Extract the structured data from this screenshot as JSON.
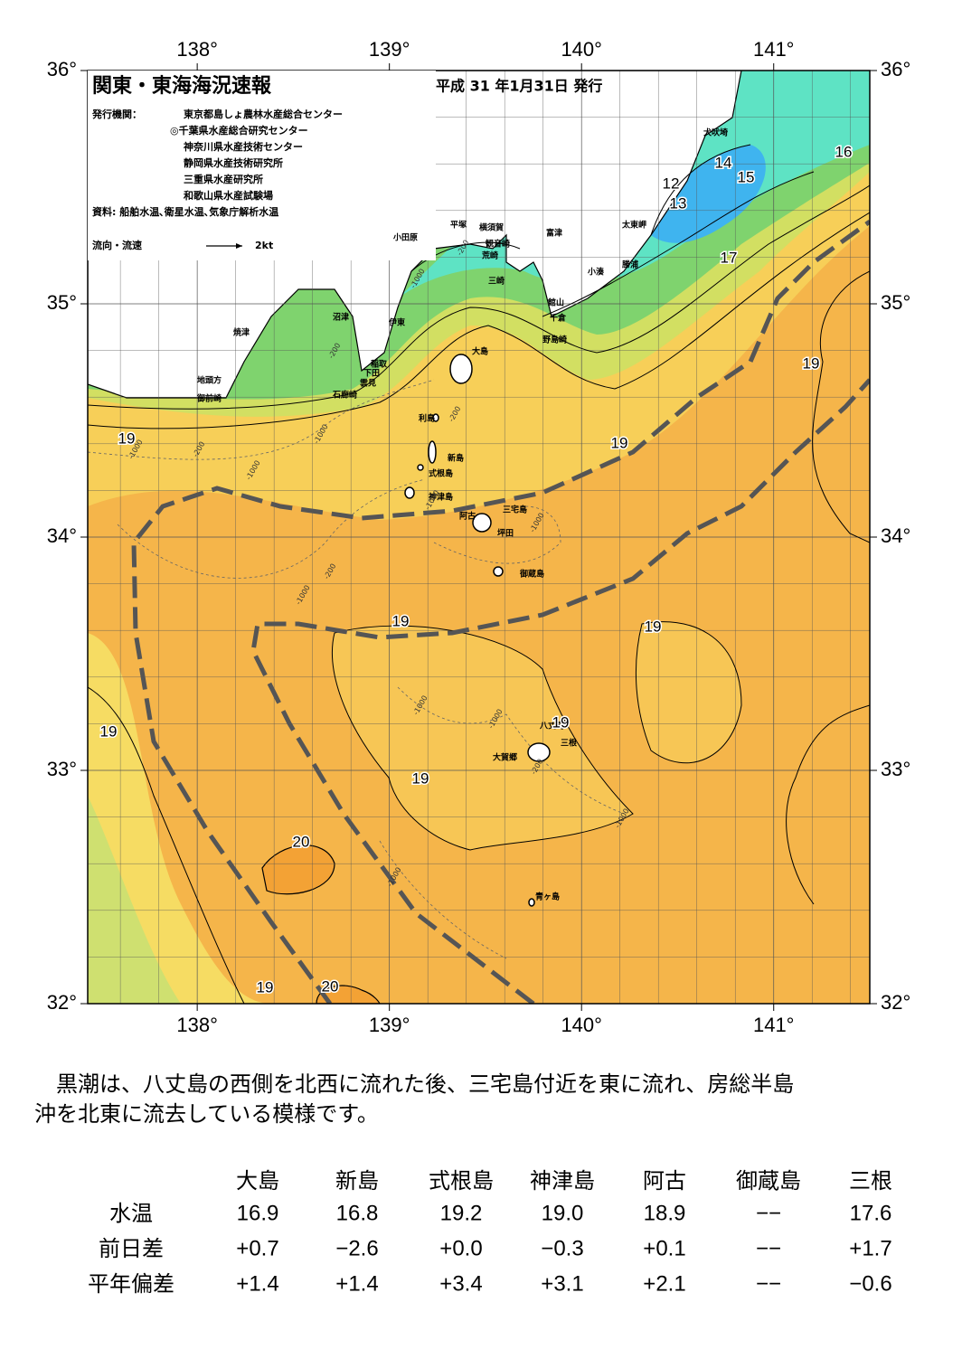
{
  "map": {
    "title": "関東・東海海況速報",
    "issue_date": "平成 31 年1月31日 発行",
    "issuer_label": "発行機関：",
    "issuers": [
      "東京都島しょ農林水産総合センター",
      "◎千葉県水産総合研究センター",
      "神奈川県水産技術センター",
      "静岡県水産技術研究所",
      "三重県水産研究所",
      "和歌山県水産試験場"
    ],
    "sources": "資料: 船舶水温､衛星水温､気象庁解析水温",
    "legend": {
      "label": "流向・流速",
      "scale": "2kt"
    },
    "lonlim": [
      137.43,
      141.5
    ],
    "latlim": [
      32,
      36
    ],
    "lon_ticks": [
      {
        "value": 138,
        "label": "138°"
      },
      {
        "value": 139,
        "label": "139°"
      },
      {
        "value": 140,
        "label": "140°"
      },
      {
        "value": 141,
        "label": "141°"
      }
    ],
    "lat_ticks": [
      {
        "value": 36,
        "label": "36°"
      },
      {
        "value": 35,
        "label": "35°"
      },
      {
        "value": 34,
        "label": "34°"
      },
      {
        "value": 33,
        "label": "33°"
      },
      {
        "value": 32,
        "label": "32°"
      }
    ],
    "places": [
      "犬吠埼",
      "太東岬",
      "勝浦",
      "小湊",
      "富津",
      "館山",
      "千倉",
      "野島崎",
      "三崎",
      "横須賀",
      "観音崎",
      "平塚",
      "荒崎",
      "小田原",
      "沼津",
      "伊東",
      "焼津",
      "稲取",
      "下田",
      "雲見",
      "石廊崎",
      "地頭方",
      "御前崎",
      "大島",
      "利島",
      "新島",
      "式根島",
      "神津島",
      "三宅島",
      "阿古",
      "坪田",
      "御蔵島",
      "八丈島",
      "三根",
      "大賀郷",
      "青ヶ島"
    ],
    "temperature_labels": [
      "12",
      "13",
      "14",
      "15",
      "16",
      "17",
      "19",
      "19",
      "19",
      "19",
      "19",
      "19",
      "19",
      "19",
      "20",
      "19",
      "20"
    ],
    "depth_labels": [
      "-200",
      "-1000",
      "-1000",
      "-200",
      "-200",
      "-1000",
      "-1000",
      "-200",
      "-1000",
      "-1000",
      "-1000",
      "-1000",
      "-200",
      "-1000",
      "-1000",
      "-200",
      "-1000"
    ]
  },
  "description": [
    "黒潮は、八丈島の西側を北西に流れた後、三宅島付近を東に流れ、房総半島",
    "沖を北東に流去している模様です。"
  ],
  "table": {
    "columns": [
      "大島",
      "新島",
      "式根島",
      "神津島",
      "阿古",
      "御蔵島",
      "三根"
    ],
    "rows": [
      {
        "label": "水温",
        "values": [
          "16.9",
          "16.8",
          "19.2",
          "19.0",
          "18.9",
          "−−",
          "17.6"
        ]
      },
      {
        "label": "前日差",
        "values": [
          "+0.7",
          "−2.6",
          "+0.0",
          "−0.3",
          "+0.1",
          "−−",
          "+1.7"
        ]
      },
      {
        "label": "平年偏差",
        "values": [
          "+1.4",
          "+1.4",
          "+3.4",
          "+3.1",
          "+2.1",
          "−−",
          "−0.6"
        ]
      }
    ]
  }
}
